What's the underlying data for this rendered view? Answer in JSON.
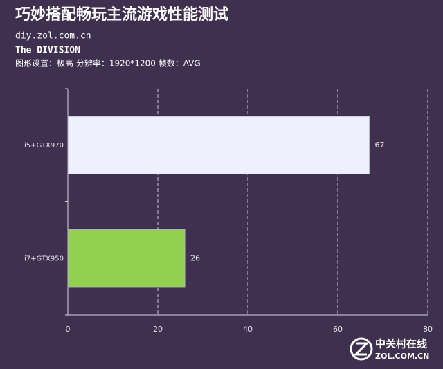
{
  "chart_data": {
    "type": "barh",
    "title": "巧妙搭配畅玩主流游戏性能测试",
    "subtitle": "diy.zol.com.cn",
    "game": "The DIVISION",
    "settings": "图形设置：极高  分辨率：1920*1200 帧数：AVG",
    "categories": [
      "i5+GTX970",
      "i7+GTX950"
    ],
    "values": [
      67,
      26
    ],
    "colors": [
      "#eef0fb",
      "#92d050"
    ],
    "xlim": [
      0,
      80
    ],
    "xticks": [
      0,
      20,
      40,
      60,
      80
    ],
    "grid": true
  },
  "watermark": {
    "name": "中关村在线",
    "site": "ZOL.COM.CN"
  }
}
